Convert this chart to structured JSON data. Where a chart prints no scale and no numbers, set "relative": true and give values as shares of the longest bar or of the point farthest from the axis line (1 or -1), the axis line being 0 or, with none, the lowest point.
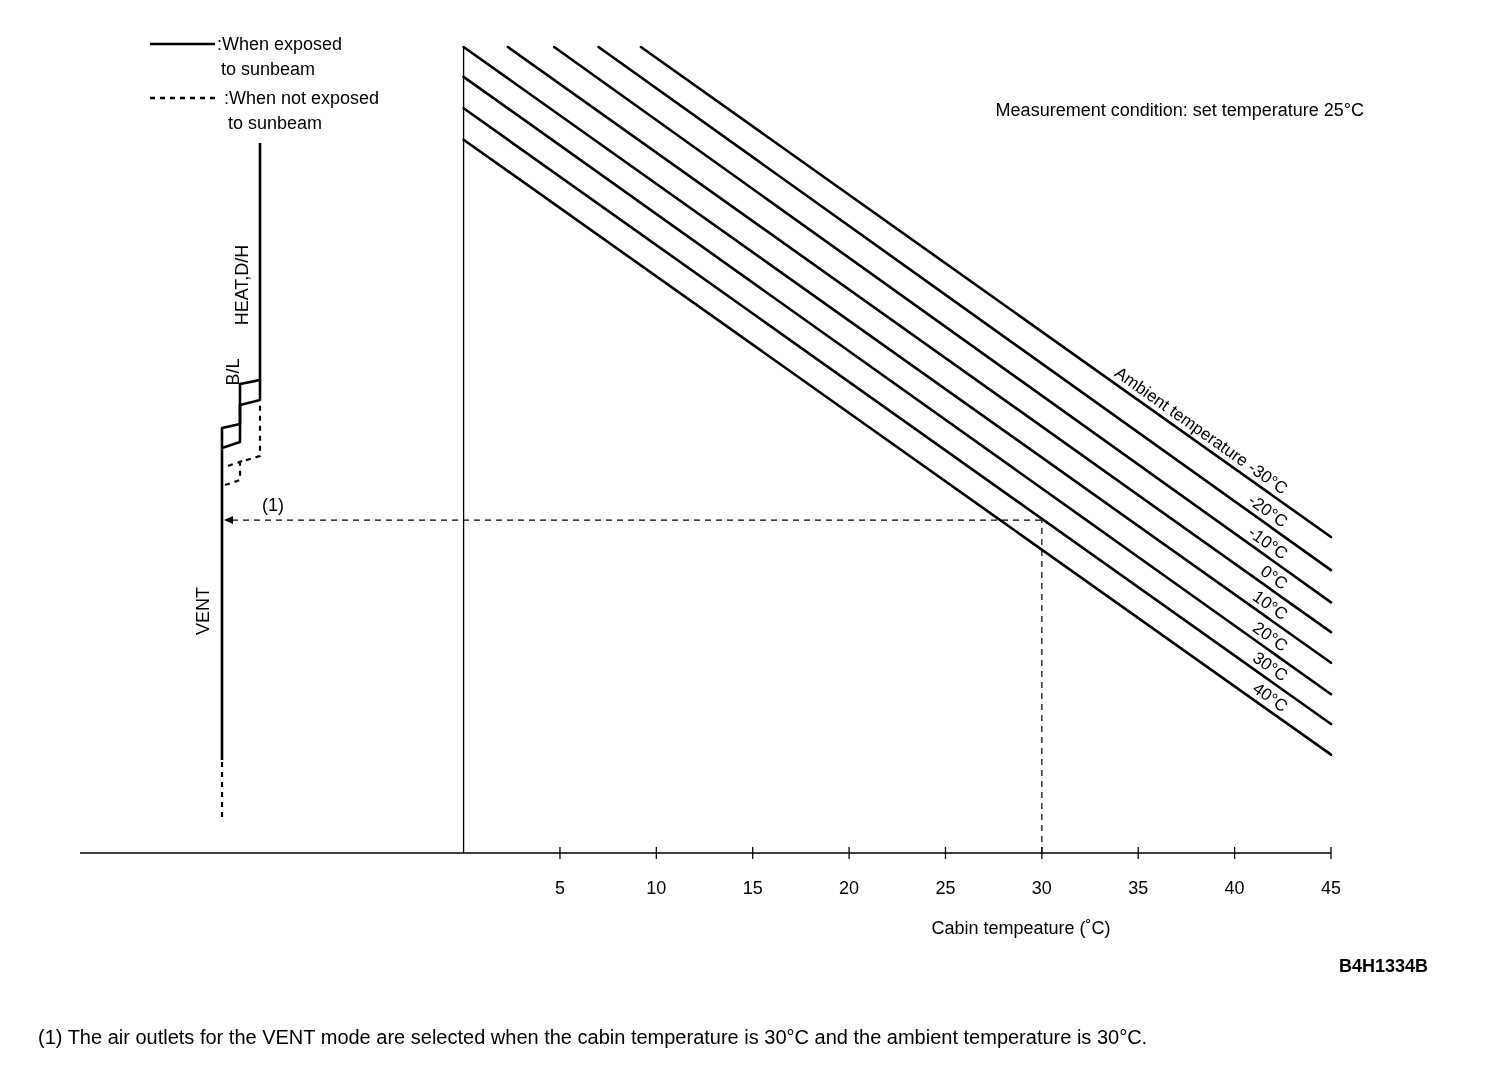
{
  "chart_data": {
    "type": "line",
    "relative": true,
    "xlabel": "Cabin tempeature (˚C)",
    "legend_title": "Ambient temperature",
    "xlim": [
      -19.9,
      45
    ],
    "xticks": [
      5,
      10,
      15,
      20,
      25,
      30,
      35,
      40,
      45
    ],
    "series": [
      {
        "name": "-30°C",
        "color": "#000000",
        "x": [
          9.2,
          45
        ],
        "values": [
          1,
          0.392
        ]
      },
      {
        "name": "-20°C",
        "color": "#000000",
        "x": [
          7,
          45
        ],
        "values": [
          1,
          0.351
        ]
      },
      {
        "name": "-10°C",
        "color": "#000000",
        "x": [
          4.7,
          45
        ],
        "values": [
          1,
          0.311
        ]
      },
      {
        "name": "0°C",
        "color": "#000000",
        "x": [
          2.3,
          45
        ],
        "values": [
          1,
          0.274
        ]
      },
      {
        "name": "10°C",
        "color": "#000000",
        "x": [
          0,
          45
        ],
        "values": [
          1,
          0.236
        ]
      },
      {
        "name": "20°C",
        "color": "#000000",
        "x": [
          0,
          45
        ],
        "values": [
          0.963,
          0.197
        ]
      },
      {
        "name": "30°C",
        "color": "#000000",
        "x": [
          0,
          45
        ],
        "values": [
          0.924,
          0.16
        ]
      },
      {
        "name": "40°C",
        "color": "#000000",
        "x": [
          0,
          45
        ],
        "values": [
          0.885,
          0.122
        ]
      }
    ],
    "ref_lines": [
      {
        "axis": "x",
        "value": 30,
        "line_style": "dashed"
      },
      {
        "axis": "y",
        "value": 0.413,
        "line_style": "dashed"
      }
    ],
    "annotations": [
      ":When exposed\nto sunbeam",
      ":When not exposed\nto sunbeam",
      "VENT",
      "B/L",
      "HEAT,D/H",
      "Measurement condition: set temperature 25°C",
      "B4H1334B",
      "(1)  The air outlets for the VENT mode are selected when the cabin temperature is 30°C and the ambient temperature is 30°C.",
      "(1)"
    ],
    "legend": false,
    "grid": false,
    "marker": "none",
    "line_style": "solid"
  }
}
